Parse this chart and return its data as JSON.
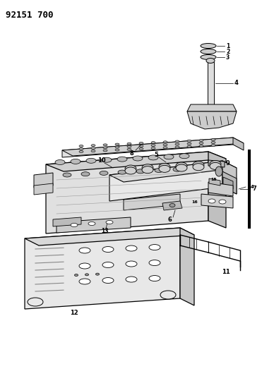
{
  "title": "92151 700",
  "bg_color": "#ffffff",
  "line_color": "#000000",
  "gray_light": "#cccccc",
  "gray_mid": "#aaaaaa",
  "gray_dark": "#888888"
}
